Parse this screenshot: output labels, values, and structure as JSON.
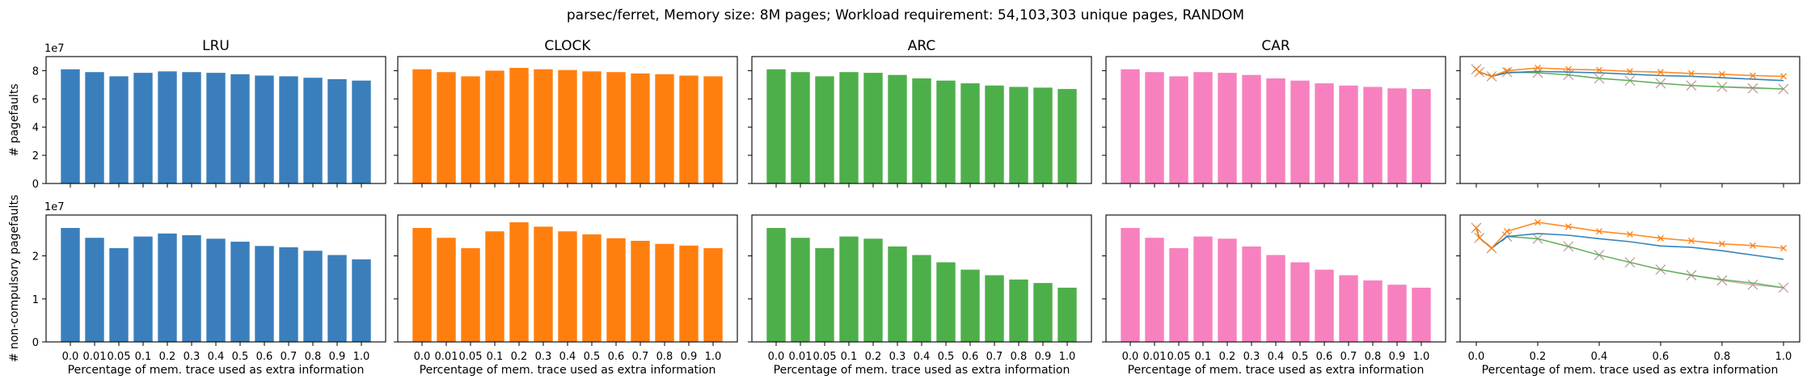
{
  "figure": {
    "suptitle": "parsec/ferret, Memory size: 8M pages; Workload requirement: 54,103,303 unique pages, RANDOM"
  },
  "colors": {
    "LRU": "#3a7fbc",
    "CLOCK": "#ff7f0e",
    "ARC": "#4daf4a",
    "CAR": "#f781bf",
    "line_lru": "#1f77b4",
    "line_clock": "#ff7f0e",
    "line_arc": "#4daf4a",
    "line_car": "#c0a0a0"
  },
  "chart_data": {
    "type": "bar",
    "x_categories": [
      "0.0",
      "0.01",
      "0.05",
      "0.1",
      "0.2",
      "0.3",
      "0.4",
      "0.5",
      "0.6",
      "0.7",
      "0.8",
      "0.9",
      "1.0"
    ],
    "x_numeric": [
      0.0,
      0.01,
      0.05,
      0.1,
      0.2,
      0.3,
      0.4,
      0.5,
      0.6,
      0.7,
      0.8,
      0.9,
      1.0
    ],
    "xlabel": "Percentage of mem. trace used as extra information",
    "rows": [
      {
        "ylabel": "# pagefaults",
        "offset_text": "1e7",
        "ylim": [
          0,
          9
        ],
        "yticks": [
          0,
          2,
          4,
          6,
          8
        ],
        "series": [
          {
            "name": "LRU",
            "values": [
              8.1,
              7.9,
              7.6,
              7.85,
              7.95,
              7.9,
              7.85,
              7.75,
              7.65,
              7.6,
              7.5,
              7.4,
              7.3
            ]
          },
          {
            "name": "CLOCK",
            "values": [
              8.1,
              7.9,
              7.6,
              8.0,
              8.2,
              8.1,
              8.05,
              7.95,
              7.9,
              7.8,
              7.75,
              7.65,
              7.6
            ]
          },
          {
            "name": "ARC",
            "values": [
              8.1,
              7.9,
              7.6,
              7.9,
              7.85,
              7.7,
              7.45,
              7.3,
              7.1,
              6.95,
              6.85,
              6.8,
              6.7
            ]
          },
          {
            "name": "CAR",
            "values": [
              8.1,
              7.9,
              7.6,
              7.9,
              7.85,
              7.7,
              7.45,
              7.3,
              7.1,
              6.95,
              6.85,
              6.75,
              6.7
            ]
          }
        ]
      },
      {
        "ylabel": "# non-compulsory pagefaults",
        "offset_text": "1e7",
        "ylim": [
          0,
          2.95
        ],
        "yticks": [
          0,
          1,
          2
        ],
        "series": [
          {
            "name": "LRU",
            "values": [
              2.65,
              2.42,
              2.18,
              2.45,
              2.52,
              2.48,
              2.4,
              2.33,
              2.23,
              2.2,
              2.12,
              2.02,
              1.92
            ]
          },
          {
            "name": "CLOCK",
            "values": [
              2.65,
              2.42,
              2.18,
              2.57,
              2.78,
              2.68,
              2.57,
              2.5,
              2.41,
              2.35,
              2.28,
              2.24,
              2.18
            ]
          },
          {
            "name": "ARC",
            "values": [
              2.65,
              2.42,
              2.18,
              2.45,
              2.4,
              2.22,
              2.02,
              1.85,
              1.68,
              1.55,
              1.45,
              1.37,
              1.26
            ]
          },
          {
            "name": "CAR",
            "values": [
              2.65,
              2.42,
              2.18,
              2.45,
              2.4,
              2.22,
              2.02,
              1.85,
              1.68,
              1.55,
              1.43,
              1.33,
              1.26
            ]
          }
        ]
      }
    ],
    "columns": [
      {
        "title": "LRU",
        "series": "LRU"
      },
      {
        "title": "CLOCK",
        "series": "CLOCK"
      },
      {
        "title": "ARC",
        "series": "ARC"
      },
      {
        "title": "CAR",
        "series": "CAR"
      },
      {
        "title": "",
        "series": "combined-lines"
      }
    ],
    "line_panel": {
      "xticks": [
        "0.0",
        "0.2",
        "0.4",
        "0.6",
        "0.8",
        "1.0"
      ]
    }
  }
}
